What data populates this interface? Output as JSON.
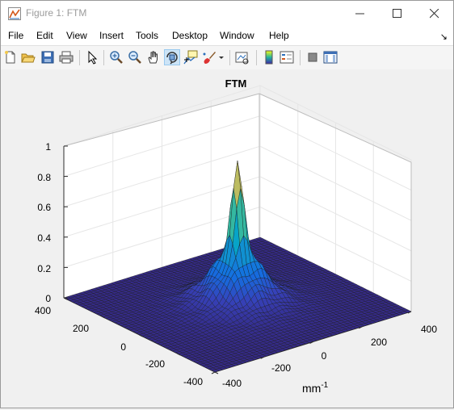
{
  "window": {
    "title": "Figure 1: FTM"
  },
  "menu": {
    "items": [
      "File",
      "Edit",
      "View",
      "Insert",
      "Tools",
      "Desktop",
      "Window",
      "Help"
    ],
    "corner": "↘"
  },
  "toolbar": {
    "buttons": [
      "new-figure",
      "open-file",
      "save",
      "print",
      "edit-plot",
      "zoom-in",
      "zoom-out",
      "pan",
      "rotate-3d",
      "data-cursor",
      "brush",
      "link-plot",
      "colorbar",
      "legend",
      "hide-plot-tools",
      "show-plot-tools"
    ],
    "active": "rotate-3d"
  },
  "figure": {
    "title": "FTM",
    "unit_label": {
      "base": "mm",
      "exponent": "-1"
    },
    "z_ticks": [
      "0",
      "0.2",
      "0.4",
      "0.6",
      "0.8",
      "1"
    ],
    "y_ticks": [
      "400",
      "200",
      "0",
      "-200",
      "-400"
    ],
    "x_ticks": [
      "-400",
      "-200",
      "0",
      "200",
      "400"
    ]
  },
  "chart_data": {
    "type": "surface",
    "title": "FTM",
    "xlabel": "mm-1",
    "x_range": [
      -400,
      400
    ],
    "y_range": [
      -400,
      400
    ],
    "zlim": [
      0,
      1
    ],
    "peak": {
      "x": 0,
      "y": 0,
      "z": 0.95
    },
    "colormap": "parula"
  }
}
